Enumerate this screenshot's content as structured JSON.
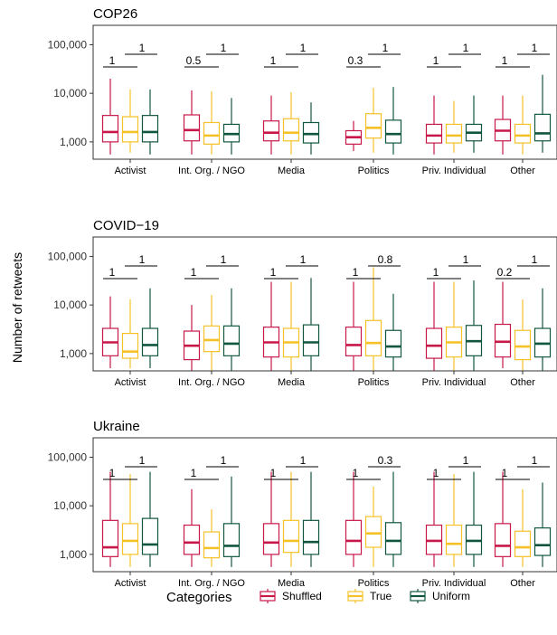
{
  "colors": {
    "Shuffled": "#c8184a",
    "True": "#f5c127",
    "Uniform": "#11573d"
  },
  "ylabel": "Number of retweets",
  "legend": {
    "title": "Categories",
    "entries": [
      "Shuffled",
      "True",
      "Uniform"
    ]
  },
  "chart_data": [
    {
      "type": "box",
      "title": "COP26",
      "ylabel": "Number of retweets",
      "yscale": "log",
      "yticks": [
        1000,
        10000,
        100000
      ],
      "ytick_labels": [
        "1,000",
        "10,000",
        "100,000"
      ],
      "categories": [
        "Activist",
        "Int. Org. / NGO",
        "Media",
        "Politics",
        "Priv. Individual",
        "Other"
      ],
      "series": [
        {
          "name": "Shuffled",
          "boxes": [
            {
              "low": 550,
              "q1": 1000,
              "median": 1600,
              "q3": 3500,
              "high": 20000
            },
            {
              "low": 550,
              "q1": 1050,
              "median": 1750,
              "q3": 3600,
              "high": 11500
            },
            {
              "low": 550,
              "q1": 1050,
              "median": 1550,
              "q3": 2700,
              "high": 9000
            },
            {
              "low": 650,
              "q1": 900,
              "median": 1250,
              "q3": 1700,
              "high": 2700
            },
            {
              "low": 550,
              "q1": 950,
              "median": 1350,
              "q3": 2300,
              "high": 9000
            },
            {
              "low": 550,
              "q1": 1050,
              "median": 1700,
              "q3": 2900,
              "high": 9000
            }
          ]
        },
        {
          "name": "True",
          "boxes": [
            {
              "low": 600,
              "q1": 1000,
              "median": 1600,
              "q3": 3300,
              "high": 12000
            },
            {
              "low": 550,
              "q1": 900,
              "median": 1350,
              "q3": 2500,
              "high": 11000
            },
            {
              "low": 550,
              "q1": 1050,
              "median": 1550,
              "q3": 3000,
              "high": 10500
            },
            {
              "low": 600,
              "q1": 1200,
              "median": 1950,
              "q3": 3800,
              "high": 13000
            },
            {
              "low": 600,
              "q1": 950,
              "median": 1350,
              "q3": 2300,
              "high": 7000
            },
            {
              "low": 550,
              "q1": 950,
              "median": 1350,
              "q3": 2300,
              "high": 9000
            }
          ]
        },
        {
          "name": "Uniform",
          "boxes": [
            {
              "low": 550,
              "q1": 1000,
              "median": 1600,
              "q3": 3500,
              "high": 12000
            },
            {
              "low": 550,
              "q1": 1000,
              "median": 1450,
              "q3": 2300,
              "high": 8000
            },
            {
              "low": 550,
              "q1": 950,
              "median": 1450,
              "q3": 2500,
              "high": 6500
            },
            {
              "low": 550,
              "q1": 950,
              "median": 1450,
              "q3": 2800,
              "high": 13500
            },
            {
              "low": 600,
              "q1": 1050,
              "median": 1550,
              "q3": 2300,
              "high": 9000
            },
            {
              "low": 600,
              "q1": 1050,
              "median": 1500,
              "q3": 3700,
              "high": 24000
            }
          ]
        }
      ],
      "annotations": [
        {
          "left": "1",
          "right": "1"
        },
        {
          "left": "0.5",
          "right": "1"
        },
        {
          "left": "1",
          "right": "1"
        },
        {
          "left": "0.3",
          "right": "1"
        },
        {
          "left": "1",
          "right": "1"
        },
        {
          "left": "1",
          "right": "1"
        }
      ]
    },
    {
      "type": "box",
      "title": "COVID−19",
      "ylabel": "Number of retweets",
      "yscale": "log",
      "yticks": [
        1000,
        10000,
        100000
      ],
      "ytick_labels": [
        "1,000",
        "10,000",
        "100,000"
      ],
      "categories": [
        "Activist",
        "Int. Org. / NGO",
        "Media",
        "Politics",
        "Priv. Individual",
        "Other"
      ],
      "series": [
        {
          "name": "Shuffled",
          "boxes": [
            {
              "low": 500,
              "q1": 900,
              "median": 1700,
              "q3": 3300,
              "high": 15000
            },
            {
              "low": 450,
              "q1": 750,
              "median": 1450,
              "q3": 2900,
              "high": 10000
            },
            {
              "low": 450,
              "q1": 850,
              "median": 1700,
              "q3": 3500,
              "high": 30000
            },
            {
              "low": 450,
              "q1": 900,
              "median": 1500,
              "q3": 3500,
              "high": 30000
            },
            {
              "low": 450,
              "q1": 800,
              "median": 1450,
              "q3": 3300,
              "high": 30000
            },
            {
              "low": 500,
              "q1": 850,
              "median": 1750,
              "q3": 4000,
              "high": 30000
            }
          ]
        },
        {
          "name": "True",
          "boxes": [
            {
              "low": 500,
              "q1": 800,
              "median": 1100,
              "q3": 2600,
              "high": 13000
            },
            {
              "low": 450,
              "q1": 1100,
              "median": 1900,
              "q3": 3700,
              "high": 16000
            },
            {
              "low": 450,
              "q1": 850,
              "median": 1700,
              "q3": 3300,
              "high": 30000
            },
            {
              "low": 450,
              "q1": 900,
              "median": 1650,
              "q3": 4800,
              "high": 60000
            },
            {
              "low": 450,
              "q1": 850,
              "median": 1700,
              "q3": 3500,
              "high": 30000
            },
            {
              "low": 450,
              "q1": 750,
              "median": 1400,
              "q3": 3000,
              "high": 13000
            }
          ]
        },
        {
          "name": "Uniform",
          "boxes": [
            {
              "low": 500,
              "q1": 900,
              "median": 1500,
              "q3": 3300,
              "high": 22000
            },
            {
              "low": 450,
              "q1": 900,
              "median": 1600,
              "q3": 3700,
              "high": 22000
            },
            {
              "low": 450,
              "q1": 900,
              "median": 1700,
              "q3": 3900,
              "high": 36000
            },
            {
              "low": 450,
              "q1": 850,
              "median": 1400,
              "q3": 3000,
              "high": 17000
            },
            {
              "low": 450,
              "q1": 900,
              "median": 1800,
              "q3": 3800,
              "high": 32000
            },
            {
              "low": 450,
              "q1": 850,
              "median": 1600,
              "q3": 3300,
              "high": 22000
            }
          ]
        }
      ],
      "annotations": [
        {
          "left": "1",
          "right": "1"
        },
        {
          "left": "1",
          "right": "1"
        },
        {
          "left": "1",
          "right": "1"
        },
        {
          "left": "1",
          "right": "0.8"
        },
        {
          "left": "1",
          "right": "1"
        },
        {
          "left": "0.2",
          "right": "1"
        }
      ]
    },
    {
      "type": "box",
      "title": "Ukraine",
      "ylabel": "Number of retweets",
      "yscale": "log",
      "yticks": [
        1000,
        10000,
        100000
      ],
      "ytick_labels": [
        "1,000",
        "10,000",
        "100,000"
      ],
      "categories": [
        "Activist",
        "Int. Org. / NGO",
        "Media",
        "Politics",
        "Priv. Individual",
        "Other"
      ],
      "series": [
        {
          "name": "Shuffled",
          "boxes": [
            {
              "low": 550,
              "q1": 900,
              "median": 1400,
              "q3": 5000,
              "high": 50000
            },
            {
              "low": 550,
              "q1": 1000,
              "median": 1750,
              "q3": 4000,
              "high": 22000
            },
            {
              "low": 550,
              "q1": 1000,
              "median": 1750,
              "q3": 4300,
              "high": 50000
            },
            {
              "low": 550,
              "q1": 1000,
              "median": 1900,
              "q3": 5000,
              "high": 50000
            },
            {
              "low": 550,
              "q1": 1000,
              "median": 1900,
              "q3": 4000,
              "high": 50000
            },
            {
              "low": 550,
              "q1": 900,
              "median": 1500,
              "q3": 4300,
              "high": 50000
            }
          ]
        },
        {
          "name": "True",
          "boxes": [
            {
              "low": 550,
              "q1": 1000,
              "median": 1900,
              "q3": 4300,
              "high": 45000
            },
            {
              "low": 550,
              "q1": 850,
              "median": 1350,
              "q3": 2900,
              "high": 8500
            },
            {
              "low": 550,
              "q1": 1100,
              "median": 1900,
              "q3": 5000,
              "high": 50000
            },
            {
              "low": 550,
              "q1": 1400,
              "median": 2700,
              "q3": 6000,
              "high": 25000
            },
            {
              "low": 550,
              "q1": 1000,
              "median": 1650,
              "q3": 4000,
              "high": 45000
            },
            {
              "low": 550,
              "q1": 900,
              "median": 1400,
              "q3": 3000,
              "high": 22000
            }
          ]
        },
        {
          "name": "Uniform",
          "boxes": [
            {
              "low": 550,
              "q1": 1000,
              "median": 1600,
              "q3": 5500,
              "high": 50000
            },
            {
              "low": 550,
              "q1": 900,
              "median": 1500,
              "q3": 4300,
              "high": 40000
            },
            {
              "low": 550,
              "q1": 1000,
              "median": 1800,
              "q3": 5000,
              "high": 50000
            },
            {
              "low": 550,
              "q1": 1000,
              "median": 1900,
              "q3": 4500,
              "high": 50000
            },
            {
              "low": 550,
              "q1": 1000,
              "median": 1900,
              "q3": 4000,
              "high": 50000
            },
            {
              "low": 550,
              "q1": 950,
              "median": 1550,
              "q3": 3500,
              "high": 30000
            }
          ]
        }
      ],
      "annotations": [
        {
          "left": "1",
          "right": "1"
        },
        {
          "left": "1",
          "right": "1"
        },
        {
          "left": "1",
          "right": "1"
        },
        {
          "left": "1",
          "right": "0.3"
        },
        {
          "left": "1",
          "right": "1"
        },
        {
          "left": "1",
          "right": "1"
        }
      ]
    }
  ]
}
